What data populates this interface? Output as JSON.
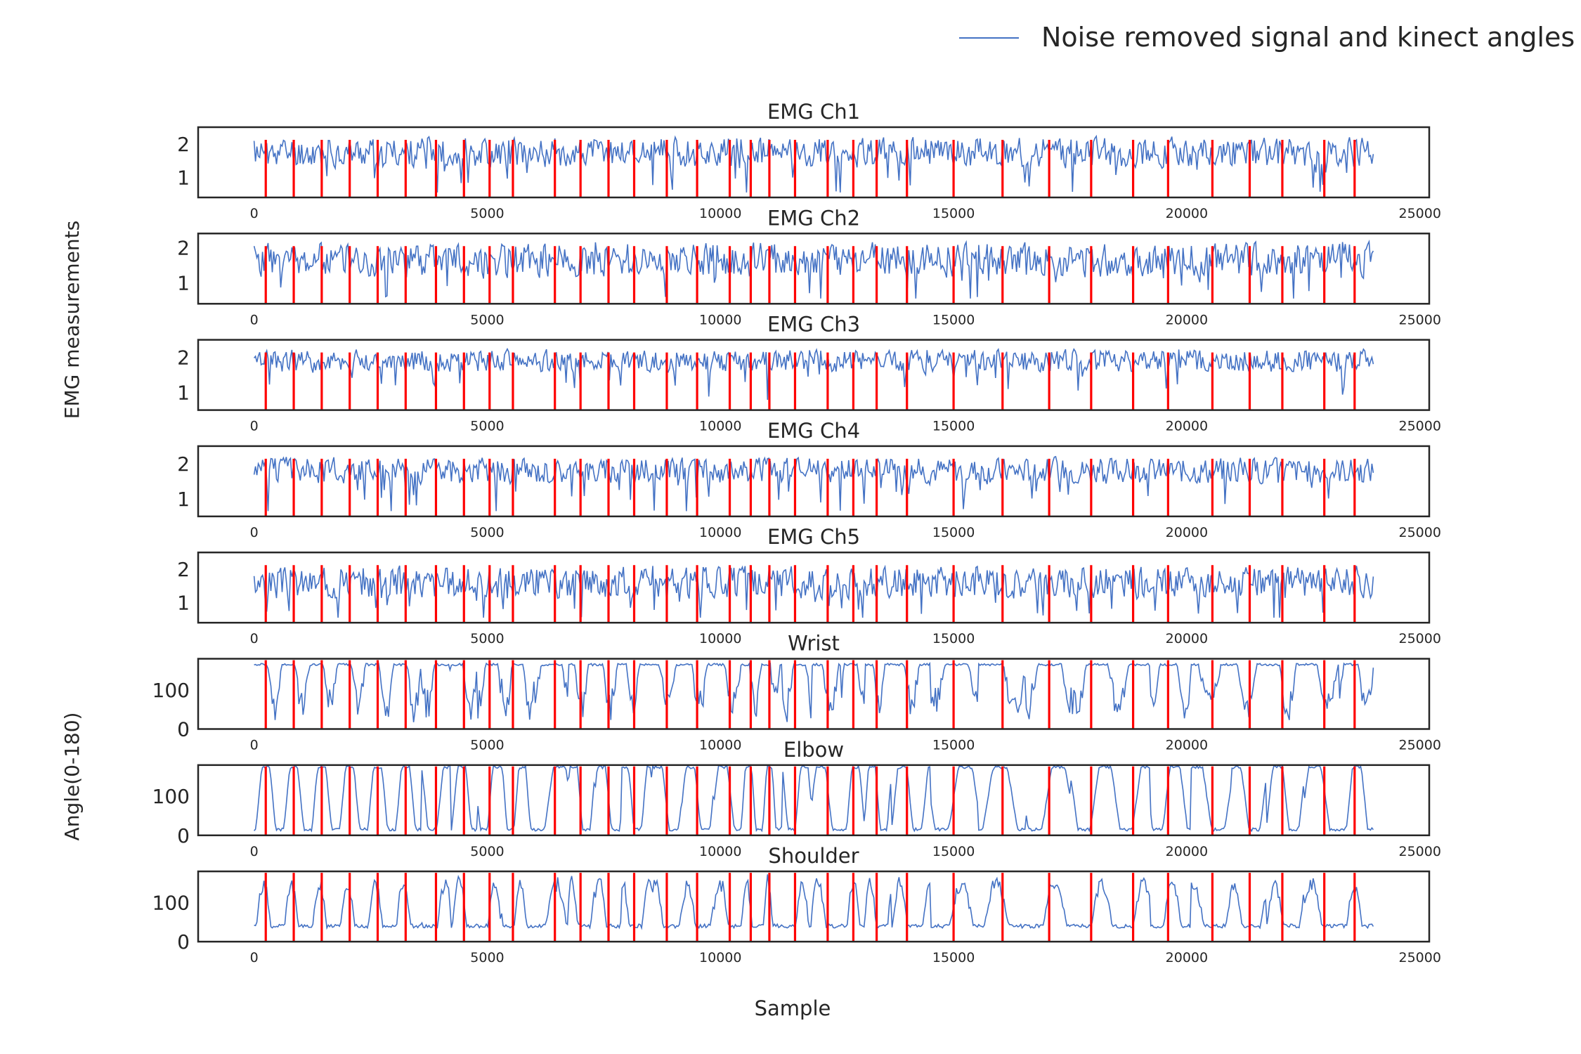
{
  "legend": {
    "label": "Noise removed signal and kinect angles",
    "color": "#4472c4"
  },
  "labels": {
    "emg_group_ylabel": "EMG measurements",
    "angle_group_ylabel": "Angle(0-180)",
    "xlabel": "Sample"
  },
  "chart_data": {
    "type": "line",
    "xlim": [
      -1200,
      25200
    ],
    "x_ticks": [
      0,
      5000,
      10000,
      15000,
      20000,
      25000
    ],
    "sample_count": 24000,
    "signal_color": "#4472c4",
    "marker_color": "#ff0000",
    "markers_x": [
      250,
      850,
      1450,
      2050,
      2650,
      3250,
      3900,
      4500,
      5050,
      5550,
      6450,
      7000,
      7600,
      8150,
      8850,
      9500,
      10200,
      10650,
      11050,
      11600,
      12300,
      12850,
      13350,
      14000,
      15000,
      16050,
      17050,
      17950,
      18850,
      19600,
      20550,
      21350,
      22050,
      22950,
      23600
    ],
    "panels": [
      {
        "title": "EMG Ch1",
        "ylim": [
          0.4,
          2.5
        ],
        "yticks": [
          1,
          2
        ],
        "kind": "emg",
        "base": 1.75,
        "amp": 0.42,
        "drop": 1.05,
        "seed": 11
      },
      {
        "title": "EMG Ch2",
        "ylim": [
          0.4,
          2.4
        ],
        "yticks": [
          1,
          2
        ],
        "kind": "emg",
        "base": 1.65,
        "amp": 0.45,
        "drop": 1.1,
        "seed": 23
      },
      {
        "title": "EMG Ch3",
        "ylim": [
          0.5,
          2.5
        ],
        "yticks": [
          1,
          2
        ],
        "kind": "emg",
        "base": 1.9,
        "amp": 0.3,
        "drop": 0.9,
        "seed": 37
      },
      {
        "title": "EMG Ch4",
        "ylim": [
          0.5,
          2.5
        ],
        "yticks": [
          1,
          2
        ],
        "kind": "emg",
        "base": 1.8,
        "amp": 0.35,
        "drop": 0.95,
        "seed": 51
      },
      {
        "title": "EMG Ch5",
        "ylim": [
          0.4,
          2.5
        ],
        "yticks": [
          1,
          2
        ],
        "kind": "emg",
        "base": 1.6,
        "amp": 0.45,
        "drop": 1.05,
        "seed": 67
      },
      {
        "title": "Wrist",
        "ylim": [
          0,
          180
        ],
        "yticks": [
          0,
          100
        ],
        "kind": "wrist",
        "seed": 79
      },
      {
        "title": "Elbow",
        "ylim": [
          0,
          180
        ],
        "yticks": [
          0,
          100
        ],
        "kind": "elbow",
        "seed": 83
      },
      {
        "title": "Shoulder",
        "ylim": [
          0,
          180
        ],
        "yticks": [
          0,
          100
        ],
        "kind": "shoulder",
        "seed": 97
      }
    ]
  }
}
